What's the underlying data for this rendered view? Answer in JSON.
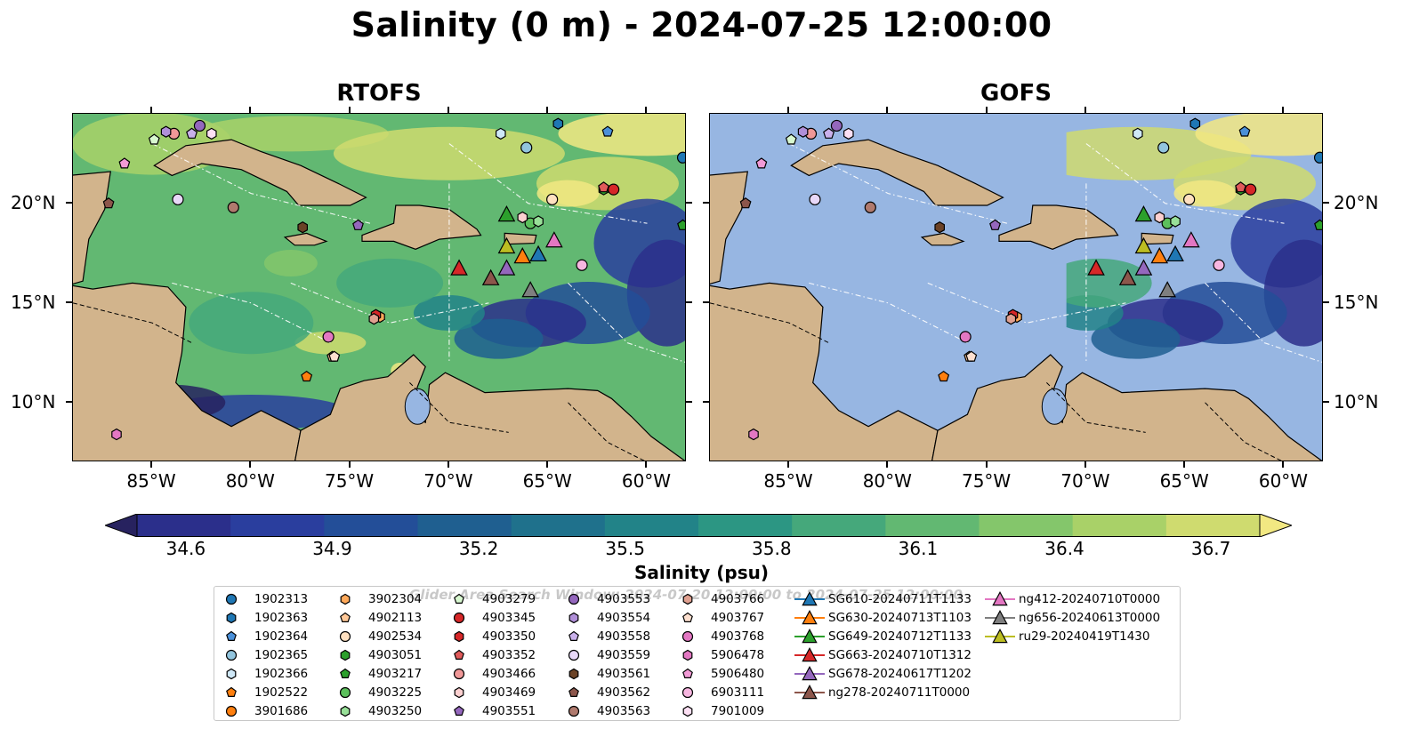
{
  "title": "Salinity (0 m) - 2024-07-25 12:00:00",
  "panels": [
    {
      "title": "RTOFS"
    },
    {
      "title": "GOFS"
    }
  ],
  "axes": {
    "x_ticks": [
      "85°W",
      "80°W",
      "75°W",
      "70°W",
      "65°W",
      "60°W"
    ],
    "y_ticks": [
      "20°N",
      "15°N",
      "10°N"
    ],
    "lon_range": [
      -89,
      -58
    ],
    "lat_range": [
      7,
      24.5
    ]
  },
  "colorbar": {
    "label": "Salinity (psu)",
    "ticks": [
      "34.6",
      "34.9",
      "35.2",
      "35.5",
      "35.8",
      "36.1",
      "36.4",
      "36.7"
    ],
    "range": [
      34.5,
      36.8
    ],
    "colors": [
      "#27225f",
      "#2b2f8b",
      "#2a3e9e",
      "#234e98",
      "#1f5f90",
      "#1f718c",
      "#228388",
      "#2c9683",
      "#45a87b",
      "#62b872",
      "#84c66b",
      "#a9d168",
      "#cfdb6f",
      "#f2e882"
    ]
  },
  "map_colors": {
    "land": "#d2b48c",
    "ocean_masked": "#97b6e2",
    "lake": "#97b6e2"
  },
  "legend_watermark": "Glider Area Search Window: 2024-07-20 12:00:00 to 2024-07-25 12:00:00",
  "legend": [
    {
      "label": "1902313",
      "marker": "circle",
      "color": "#1f77b4"
    },
    {
      "label": "1902363",
      "marker": "hexagon",
      "color": "#1f77b4"
    },
    {
      "label": "1902364",
      "marker": "pentagon",
      "color": "#4a90d9"
    },
    {
      "label": "1902365",
      "marker": "circle",
      "color": "#92c5de"
    },
    {
      "label": "1902366",
      "marker": "hexagon",
      "color": "#cfe8f7"
    },
    {
      "label": "1902522",
      "marker": "pentagon",
      "color": "#ff7f0e"
    },
    {
      "label": "3901686",
      "marker": "circle",
      "color": "#ff7f0e"
    },
    {
      "label": "3902304",
      "marker": "hexagon",
      "color": "#ffa95a"
    },
    {
      "label": "4902113",
      "marker": "pentagon",
      "color": "#ffc898"
    },
    {
      "label": "4902534",
      "marker": "circle",
      "color": "#ffe0c0"
    },
    {
      "label": "4903051",
      "marker": "hexagon",
      "color": "#2ca02c"
    },
    {
      "label": "4903217",
      "marker": "pentagon",
      "color": "#2ca02c"
    },
    {
      "label": "4903225",
      "marker": "circle",
      "color": "#5cc05c"
    },
    {
      "label": "4903250",
      "marker": "hexagon",
      "color": "#98e098"
    },
    {
      "label": "4903279",
      "marker": "pentagon",
      "color": "#d8f8d0"
    },
    {
      "label": "4903345",
      "marker": "circle",
      "color": "#d62728"
    },
    {
      "label": "4903350",
      "marker": "hexagon",
      "color": "#d62728"
    },
    {
      "label": "4903352",
      "marker": "pentagon",
      "color": "#e05a5a"
    },
    {
      "label": "4903466",
      "marker": "circle",
      "color": "#f09898"
    },
    {
      "label": "4903469",
      "marker": "hexagon",
      "color": "#fcd0d0"
    },
    {
      "label": "4903551",
      "marker": "pentagon",
      "color": "#9467bd"
    },
    {
      "label": "4903553",
      "marker": "circle",
      "color": "#9467bd"
    },
    {
      "label": "4903554",
      "marker": "hexagon",
      "color": "#b08fd8"
    },
    {
      "label": "4903558",
      "marker": "pentagon",
      "color": "#c9b0ea"
    },
    {
      "label": "4903559",
      "marker": "circle",
      "color": "#e8d8f8"
    },
    {
      "label": "4903561",
      "marker": "hexagon",
      "color": "#6b4226"
    },
    {
      "label": "4903562",
      "marker": "pentagon",
      "color": "#8c564b"
    },
    {
      "label": "4903563",
      "marker": "circle",
      "color": "#b07a6e"
    },
    {
      "label": "4903766",
      "marker": "hexagon",
      "color": "#e0a090"
    },
    {
      "label": "4903767",
      "marker": "pentagon",
      "color": "#fde0d0"
    },
    {
      "label": "4903768",
      "marker": "circle",
      "color": "#e377c2"
    },
    {
      "label": "5906478",
      "marker": "hexagon",
      "color": "#e377c2"
    },
    {
      "label": "5906480",
      "marker": "pentagon",
      "color": "#f29ad6"
    },
    {
      "label": "6903111",
      "marker": "circle",
      "color": "#f7b6e0"
    },
    {
      "label": "7901009",
      "marker": "hexagon",
      "color": "#fde0f4"
    },
    {
      "label": "SG610-20240711T1133",
      "marker": "triangle",
      "color": "#1f77b4"
    },
    {
      "label": "SG630-20240713T1103",
      "marker": "triangle",
      "color": "#ff7f0e"
    },
    {
      "label": "SG649-20240712T1133",
      "marker": "triangle",
      "color": "#2ca02c"
    },
    {
      "label": "SG663-20240710T1312",
      "marker": "triangle",
      "color": "#d62728"
    },
    {
      "label": "SG678-20240617T1202",
      "marker": "triangle",
      "color": "#9467bd"
    },
    {
      "label": "ng278-20240711T0000",
      "marker": "triangle",
      "color": "#8c564b"
    },
    {
      "label": "ng412-20240710T0000",
      "marker": "triangle",
      "color": "#e377c2"
    },
    {
      "label": "ng656-20240613T0000",
      "marker": "triangle",
      "color": "#7f7f7f"
    },
    {
      "label": "ru29-20240419T1430",
      "marker": "triangle",
      "color": "#bcbd22"
    }
  ],
  "markers": [
    {
      "id": "1902313",
      "lon": -58.2,
      "lat": 22.3
    },
    {
      "id": "1902363",
      "lon": -64.5,
      "lat": 24.0
    },
    {
      "id": "1902364",
      "lon": -62.0,
      "lat": 23.6
    },
    {
      "id": "1902365",
      "lon": -66.1,
      "lat": 22.8
    },
    {
      "id": "1902366",
      "lon": -67.4,
      "lat": 23.5
    },
    {
      "id": "1902522",
      "lon": -77.2,
      "lat": 11.3
    },
    {
      "id": "3901686",
      "lon": -57.8,
      "lat": 22.1
    },
    {
      "id": "3902304",
      "lon": -73.5,
      "lat": 14.3
    },
    {
      "id": "4902113",
      "lon": -75.9,
      "lat": 12.3
    },
    {
      "id": "4902534",
      "lon": -64.8,
      "lat": 20.2
    },
    {
      "id": "4903051",
      "lon": -62.2,
      "lat": 20.7
    },
    {
      "id": "4903217",
      "lon": -58.2,
      "lat": 18.9
    },
    {
      "id": "4903225",
      "lon": -65.9,
      "lat": 19.0
    },
    {
      "id": "4903250",
      "lon": -65.5,
      "lat": 19.1
    },
    {
      "id": "4903279",
      "lon": -84.9,
      "lat": 23.2
    },
    {
      "id": "4903345",
      "lon": -61.7,
      "lat": 20.7
    },
    {
      "id": "4903350",
      "lon": -73.7,
      "lat": 14.4
    },
    {
      "id": "4903352",
      "lon": -62.2,
      "lat": 20.8
    },
    {
      "id": "4903466",
      "lon": -83.9,
      "lat": 23.5
    },
    {
      "id": "4903469",
      "lon": -66.3,
      "lat": 19.3
    },
    {
      "id": "4903551",
      "lon": -74.6,
      "lat": 18.9
    },
    {
      "id": "4903553",
      "lon": -82.6,
      "lat": 23.9
    },
    {
      "id": "4903554",
      "lon": -84.3,
      "lat": 23.6
    },
    {
      "id": "4903558",
      "lon": -83.0,
      "lat": 23.5
    },
    {
      "id": "4903559",
      "lon": -83.7,
      "lat": 20.2
    },
    {
      "id": "4903561",
      "lon": -77.4,
      "lat": 18.8
    },
    {
      "id": "4903562",
      "lon": -87.2,
      "lat": 20.0
    },
    {
      "id": "4903563",
      "lon": -80.9,
      "lat": 19.8
    },
    {
      "id": "4903766",
      "lon": -73.8,
      "lat": 14.2
    },
    {
      "id": "4903767",
      "lon": -75.8,
      "lat": 12.3
    },
    {
      "id": "4903768",
      "lon": -76.1,
      "lat": 13.3
    },
    {
      "id": "5906478",
      "lon": -86.8,
      "lat": 8.4
    },
    {
      "id": "5906480",
      "lon": -86.4,
      "lat": 22.0
    },
    {
      "id": "6903111",
      "lon": -63.3,
      "lat": 16.9
    },
    {
      "id": "7901009",
      "lon": -82.0,
      "lat": 23.5
    },
    {
      "id": "SG610-20240711T1133",
      "lon": -65.5,
      "lat": 17.4
    },
    {
      "id": "SG630-20240713T1103",
      "lon": -66.3,
      "lat": 17.3
    },
    {
      "id": "SG649-20240712T1133",
      "lon": -67.1,
      "lat": 19.4
    },
    {
      "id": "SG663-20240710T1312",
      "lon": -69.5,
      "lat": 16.7
    },
    {
      "id": "SG678-20240617T1202",
      "lon": -67.1,
      "lat": 16.7
    },
    {
      "id": "ng278-20240711T0000",
      "lon": -67.9,
      "lat": 16.2
    },
    {
      "id": "ng412-20240710T0000",
      "lon": -64.7,
      "lat": 18.1
    },
    {
      "id": "ng656-20240613T0000",
      "lon": -65.9,
      "lat": 15.6
    },
    {
      "id": "ru29-20240419T1430",
      "lon": -67.1,
      "lat": 17.8
    }
  ]
}
